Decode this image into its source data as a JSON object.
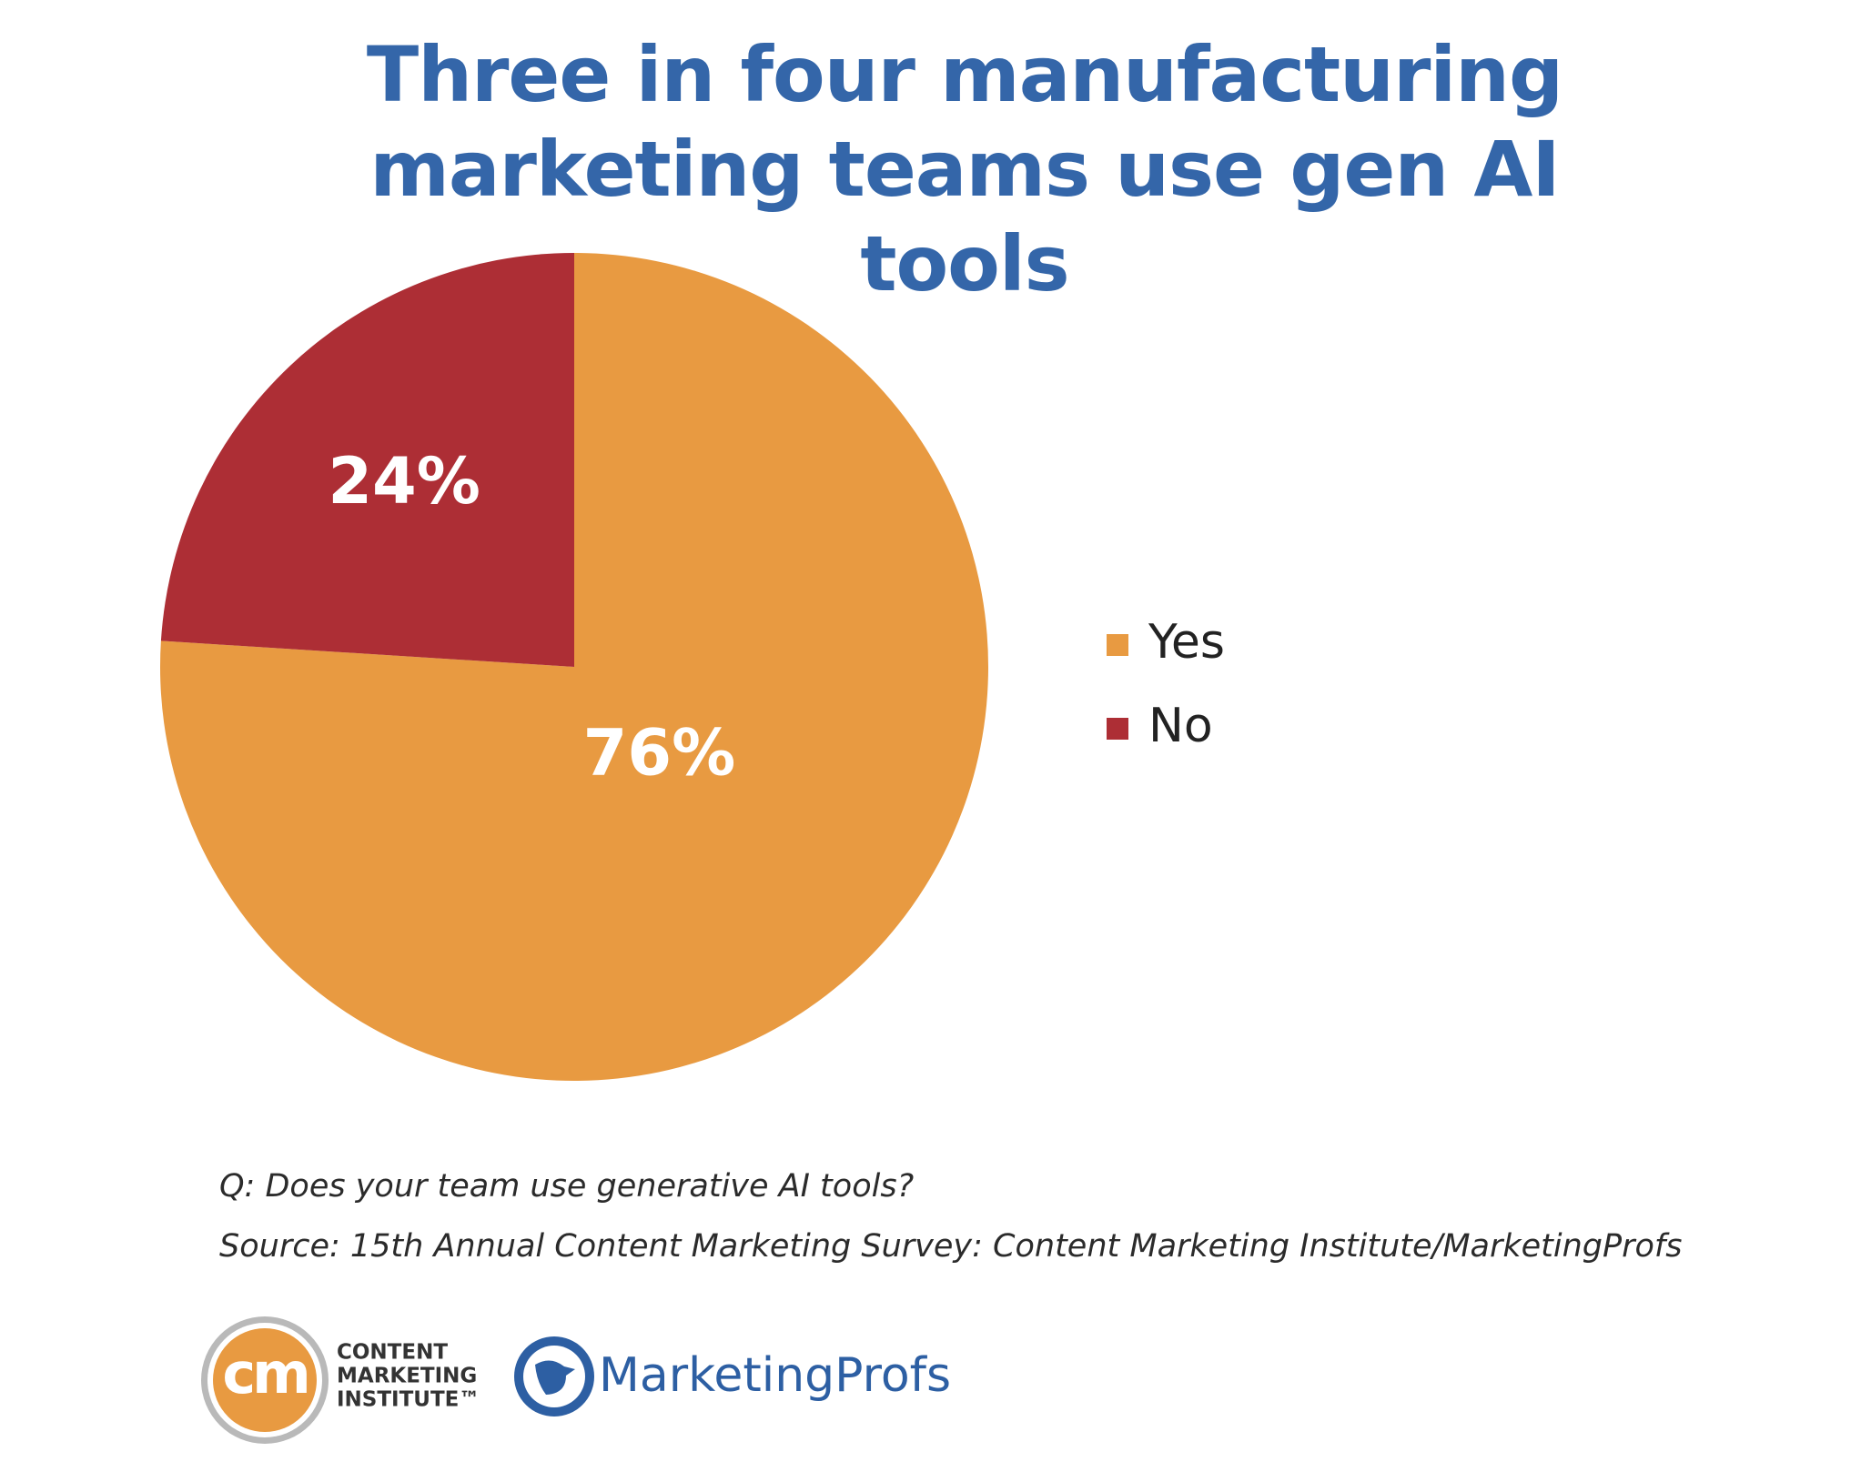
{
  "chart_data": {
    "type": "pie",
    "title": "Three in four manufacturing marketing teams use gen AI tools",
    "categories": [
      "Yes",
      "No"
    ],
    "values": [
      76,
      24
    ],
    "value_labels": [
      "76%",
      "24%"
    ],
    "colors": [
      "#e89a41",
      "#ad2e35"
    ],
    "legend": "right",
    "notes": [
      "Q: Does your team use generative AI tools?",
      "Source: 15th Annual Content Marketing Survey: Content Marketing Institute/MarketingProfs"
    ]
  },
  "logos": {
    "cmi_mark": "cm",
    "cmi_text": [
      "CONTENT",
      "MARKETING",
      "INSTITUTE™"
    ],
    "mp_text": "MarketingProfs"
  }
}
